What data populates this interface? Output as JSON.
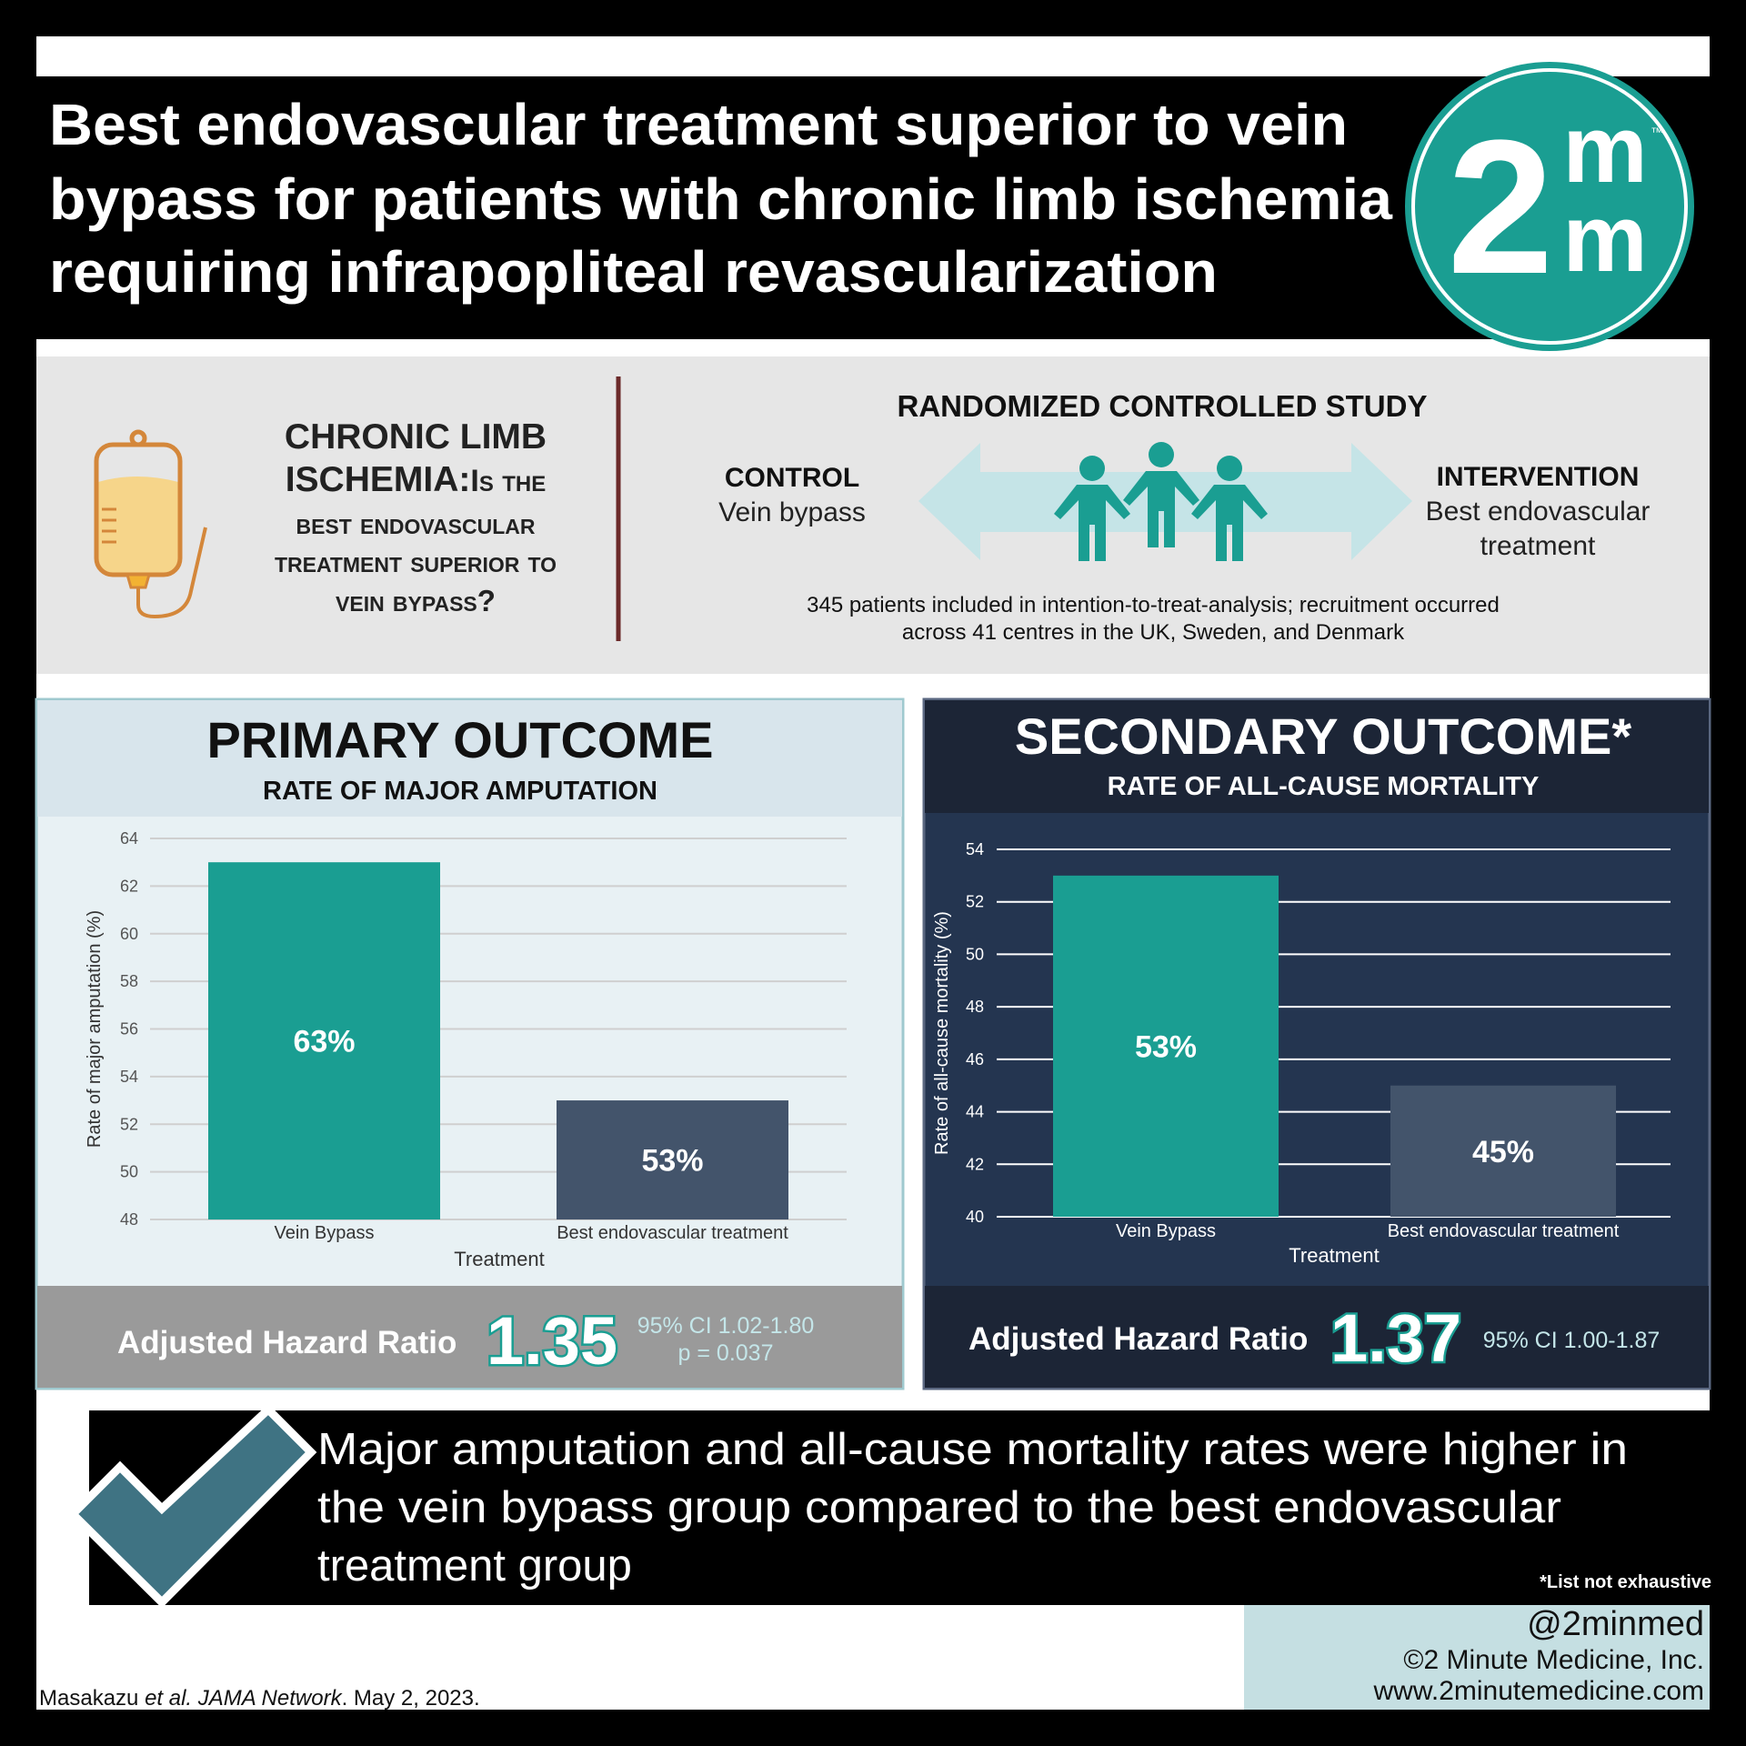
{
  "header": {
    "title_lines": [
      "Best endovascular treatment superior to vein",
      "bypass for patients with chronic limb ischemia",
      "requiring infrapopliteal revascularization"
    ],
    "logo": {
      "digit": "2",
      "top": "m",
      "bottom": "m",
      "mark": "™"
    }
  },
  "question": {
    "heading_lines": [
      "CHRONIC LIMB",
      "ISCHEMIA:"
    ],
    "text_lines": [
      "Is the",
      "best endovascular",
      "treatment superior to",
      "vein bypass?"
    ]
  },
  "study": {
    "title": "RANDOMIZED CONTROLLED STUDY",
    "control": {
      "label": "CONTROL",
      "lines": [
        "Vein bypass"
      ]
    },
    "intervention": {
      "label": "INTERVENTION",
      "lines": [
        "Best endovascular",
        "treatment"
      ]
    },
    "note_lines": [
      "345 patients included in intention-to-treat-analysis; recruitment occurred",
      "across 41 centres in the UK, Sweden, and Denmark"
    ]
  },
  "chart_data": [
    {
      "type": "bar",
      "title": "PRIMARY OUTCOME",
      "subtitle": "RATE OF MAJOR AMPUTATION",
      "categories": [
        "Vein Bypass",
        "Best endovascular treatment"
      ],
      "values": [
        63,
        53
      ],
      "value_labels": [
        "63%",
        "53%"
      ],
      "colors": [
        "#1a9e92",
        "#43546b"
      ],
      "ylim": [
        48,
        64
      ],
      "yticks": [
        48,
        50,
        52,
        54,
        56,
        58,
        60,
        62,
        64
      ],
      "grid": true,
      "x_label": "Treatment",
      "y_label": "Rate of major amputation (%)",
      "hazard_label": "Adjusted Hazard Ratio",
      "hazard_ratio": 1.35,
      "ci": "95% CI 1.02-1.80",
      "p": "p = 0.037"
    },
    {
      "type": "bar",
      "title": "SECONDARY OUTCOME*",
      "subtitle": "RATE OF ALL-CAUSE MORTALITY",
      "categories": [
        "Vein Bypass",
        "Best endovascular treatment"
      ],
      "values": [
        53,
        45
      ],
      "value_labels": [
        "53%",
        "45%"
      ],
      "colors": [
        "#1a9e92",
        "#43546b"
      ],
      "ylim": [
        40,
        54
      ],
      "yticks": [
        40,
        42,
        44,
        46,
        48,
        50,
        52,
        54
      ],
      "grid": true,
      "x_label": "Treatment",
      "y_label": "Rate of all-cause mortality (%)",
      "hazard_label": "Adjusted Hazard Ratio",
      "hazard_ratio": 1.37,
      "ci": "95% CI 1.00-1.87"
    }
  ],
  "conclusion": {
    "lines": [
      "Major amputation and all-cause mortality rates were higher in",
      "the vein bypass group compared to the best endovascular",
      "treatment group"
    ]
  },
  "footnote": "*List not exhaustive",
  "credits": {
    "handle": "@2minmed",
    "company": "©2 Minute Medicine, Inc.",
    "website": "www.2minutemedicine.com"
  },
  "citation": [
    "Masakazu ",
    "et al.",
    " JAMA Network",
    ". May 2, 2023."
  ]
}
